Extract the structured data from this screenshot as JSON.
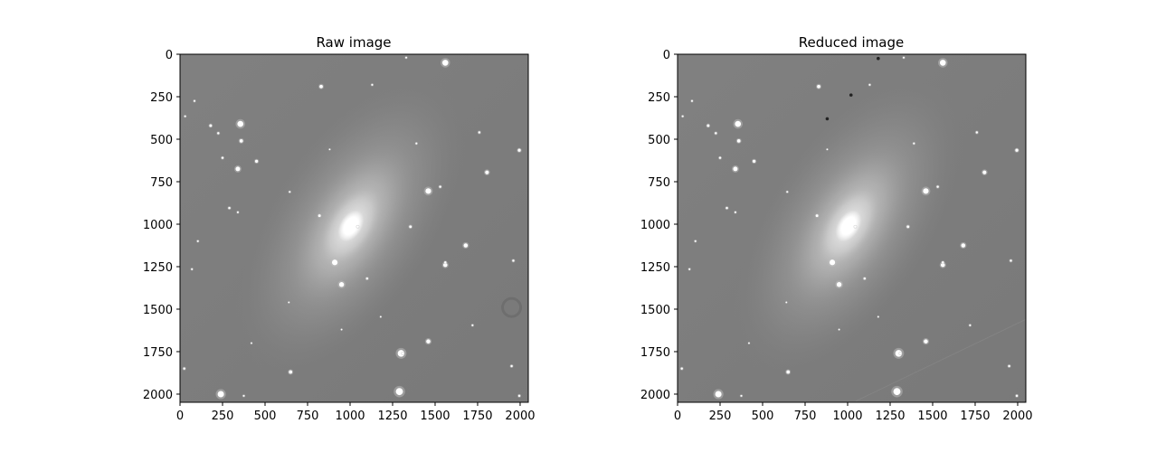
{
  "figure": {
    "panels": [
      {
        "title": "Raw image",
        "xticks": [
          "0",
          "250",
          "500",
          "750",
          "1000",
          "1250",
          "1500",
          "1750",
          "2000"
        ],
        "yticks": [
          "0",
          "250",
          "500",
          "750",
          "1000",
          "1250",
          "1500",
          "1750",
          "2000"
        ],
        "xlim": [
          0,
          2048
        ],
        "ylim": [
          2048,
          0
        ],
        "colormap": "gray",
        "has_dust_ring": true,
        "has_dark_pixels": false
      },
      {
        "title": "Reduced image",
        "xticks": [
          "0",
          "250",
          "500",
          "750",
          "1000",
          "1250",
          "1500",
          "1750",
          "2000"
        ],
        "yticks": [
          "0",
          "250",
          "500",
          "750",
          "1000",
          "1250",
          "1500",
          "1750",
          "2000"
        ],
        "xlim": [
          0,
          2048
        ],
        "ylim": [
          2048,
          0
        ],
        "colormap": "gray",
        "has_dust_ring": false,
        "has_dark_pixels": true
      }
    ],
    "colors": {
      "background": "#ffffff",
      "sky": "#7d7d7d",
      "star": "#ffffff",
      "axis": "#000000"
    }
  }
}
